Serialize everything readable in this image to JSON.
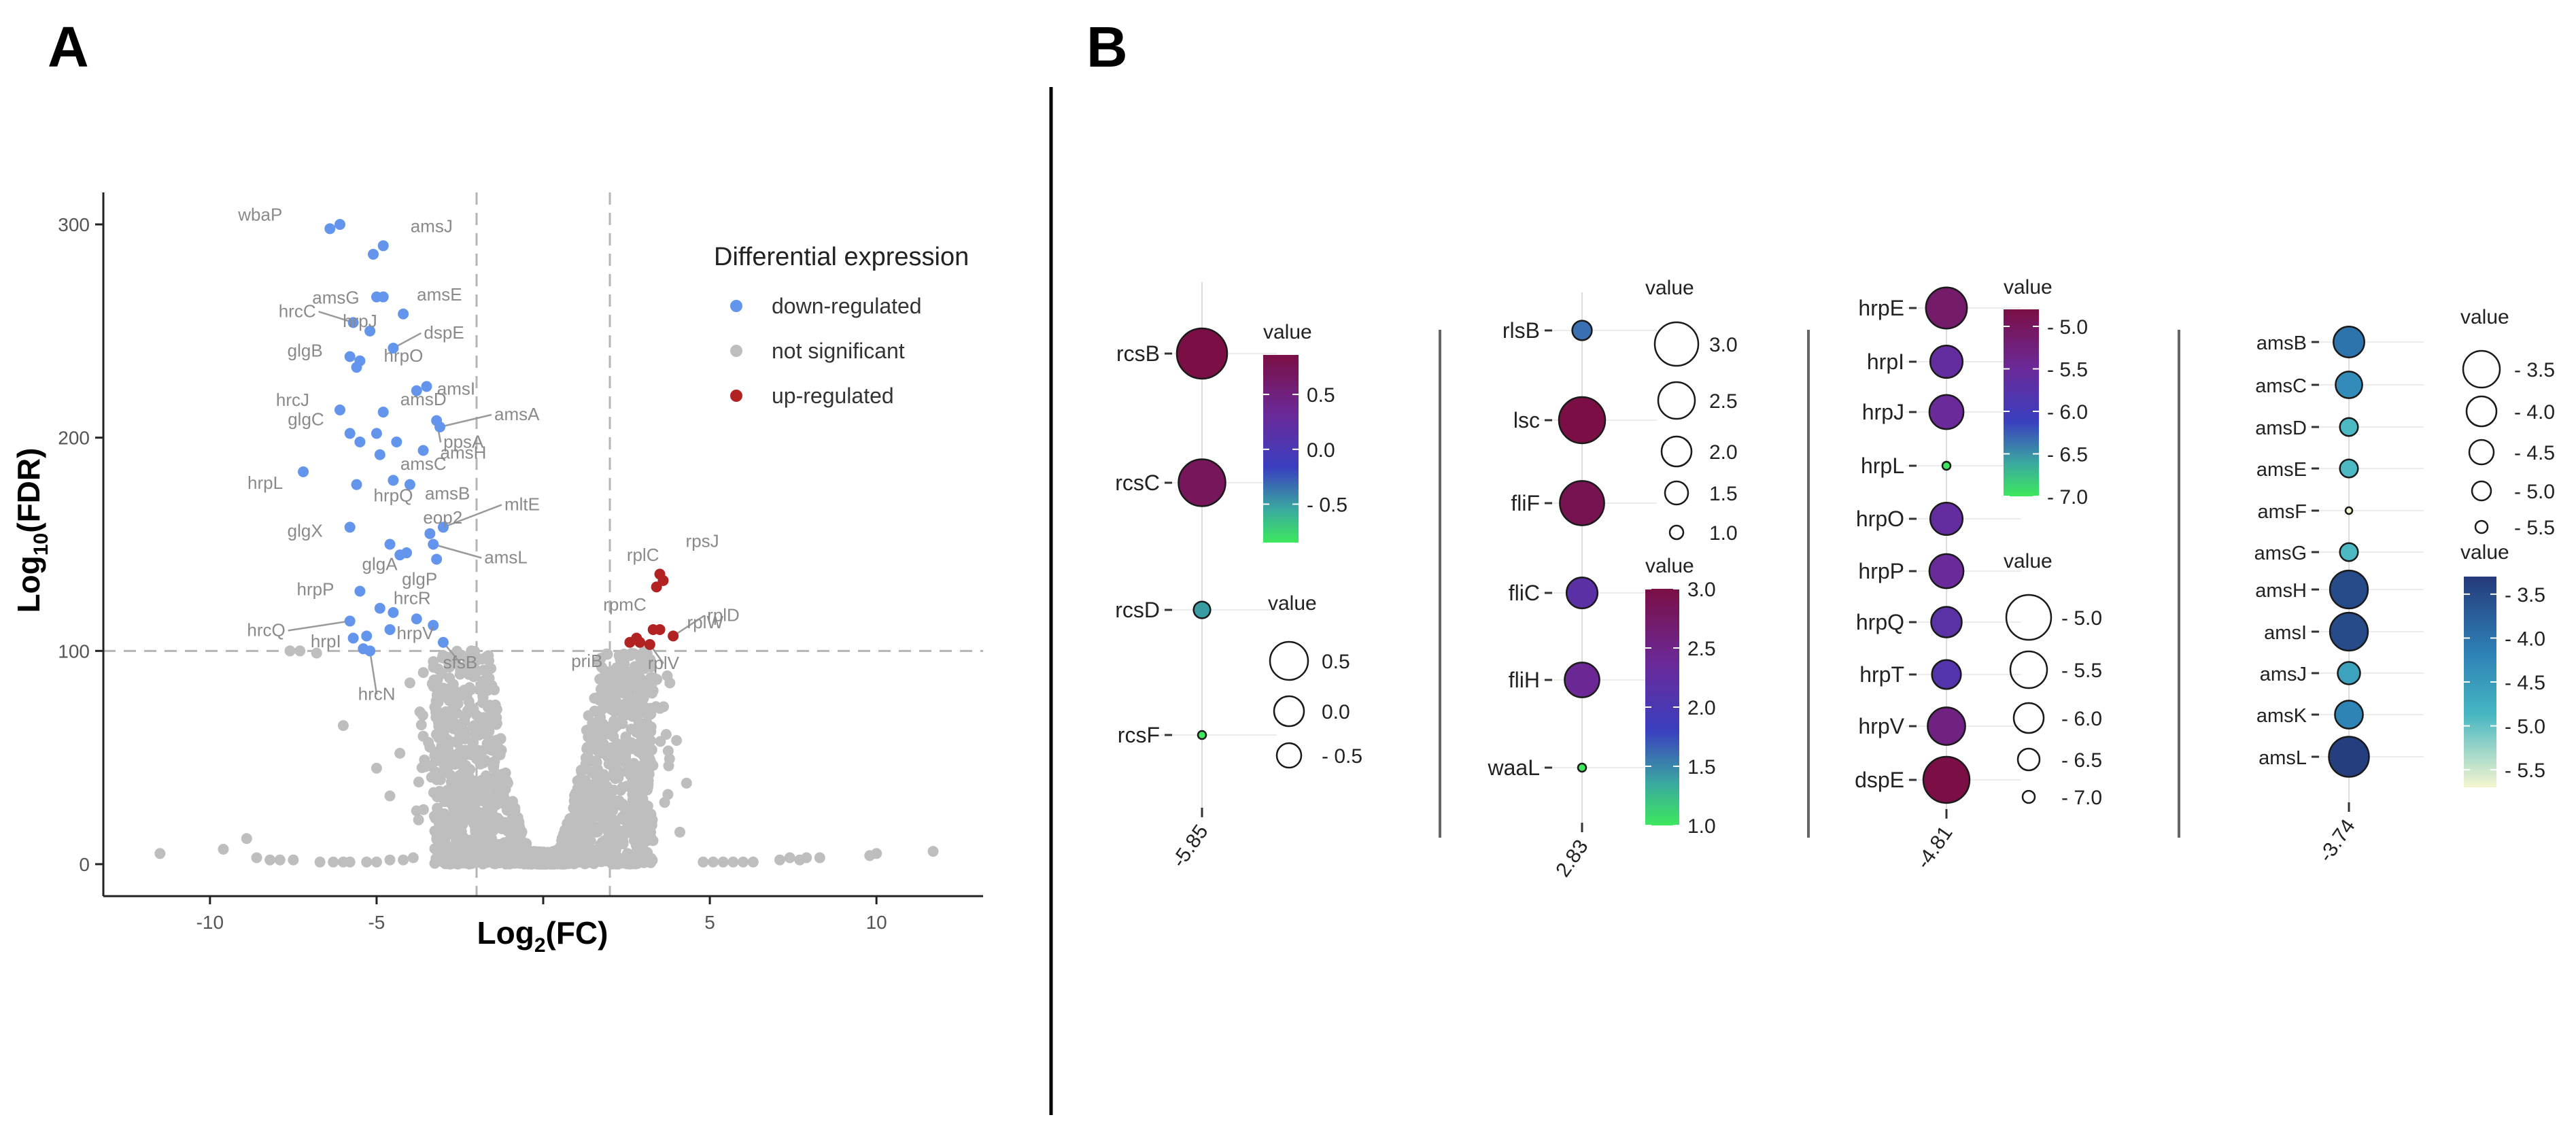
{
  "panels": {
    "a": "A",
    "b": "B"
  },
  "chart_data": [
    {
      "type": "scatter",
      "name": "volcano",
      "xlabel": "Log2(FC)",
      "ylabel": "Log10(FDR)",
      "xlim": [
        -13.2,
        13.2
      ],
      "ylim": [
        -15,
        315
      ],
      "xticks": [
        -10,
        -5,
        0,
        5,
        10
      ],
      "xtick_labels": [
        "-10",
        "-5",
        "",
        "5",
        "10"
      ],
      "yticks": [
        0,
        100,
        200,
        300
      ],
      "thresholds": {
        "fc": [
          -2,
          2
        ],
        "fdr": 100
      },
      "legend": {
        "title": "Differential expression",
        "position": "right",
        "entries": [
          {
            "label": "down-regulated",
            "color": "#6495ed"
          },
          {
            "label": "not significant",
            "color": "#bebebe"
          },
          {
            "label": "up-regulated",
            "color": "#b22222"
          }
        ]
      },
      "down_points": [
        {
          "label": "wbaP",
          "x": -6.4,
          "y": 298
        },
        {
          "label": "",
          "x": -6.1,
          "y": 300
        },
        {
          "label": "amsJ",
          "x": -4.8,
          "y": 290
        },
        {
          "label": "",
          "x": -5.1,
          "y": 286
        },
        {
          "label": "amsG",
          "x": -5.0,
          "y": 266
        },
        {
          "label": "",
          "x": -4.8,
          "y": 266
        },
        {
          "label": "amsE",
          "x": -4.2,
          "y": 258
        },
        {
          "label": "hrcC",
          "x": -5.7,
          "y": 254
        },
        {
          "label": "hrpJ",
          "x": -5.2,
          "y": 250
        },
        {
          "label": "dspE",
          "x": -4.5,
          "y": 242
        },
        {
          "label": "glgB",
          "x": -5.8,
          "y": 238
        },
        {
          "label": "",
          "x": -5.5,
          "y": 236
        },
        {
          "label": "hrpO",
          "x": -5.6,
          "y": 233
        },
        {
          "label": "amsI",
          "x": -3.8,
          "y": 222
        },
        {
          "label": "",
          "x": -3.5,
          "y": 224
        },
        {
          "label": "hrcJ",
          "x": -6.1,
          "y": 213
        },
        {
          "label": "amsD",
          "x": -4.8,
          "y": 212
        },
        {
          "label": "ppsA",
          "x": -3.2,
          "y": 208
        },
        {
          "label": "amsA",
          "x": -3.1,
          "y": 205
        },
        {
          "label": "glgC",
          "x": -5.8,
          "y": 202
        },
        {
          "label": "",
          "x": -5.5,
          "y": 198
        },
        {
          "label": "",
          "x": -5.0,
          "y": 202
        },
        {
          "label": "amsH",
          "x": -3.6,
          "y": 194
        },
        {
          "label": "",
          "x": -4.4,
          "y": 198
        },
        {
          "label": "amsC",
          "x": -4.9,
          "y": 192
        },
        {
          "label": "hrpL",
          "x": -7.2,
          "y": 184
        },
        {
          "label": "hrpQ",
          "x": -5.6,
          "y": 178
        },
        {
          "label": "",
          "x": -4.5,
          "y": 180
        },
        {
          "label": "amsB",
          "x": -4.0,
          "y": 178
        },
        {
          "label": "mltE",
          "x": -3.0,
          "y": 158
        },
        {
          "label": "glgX",
          "x": -5.8,
          "y": 158
        },
        {
          "label": "eop2",
          "x": -3.4,
          "y": 155
        },
        {
          "label": "amsL",
          "x": -3.3,
          "y": 150
        },
        {
          "label": "glgA",
          "x": -4.6,
          "y": 150
        },
        {
          "label": "",
          "x": -4.3,
          "y": 145
        },
        {
          "label": "",
          "x": -4.1,
          "y": 146
        },
        {
          "label": "glgP",
          "x": -3.2,
          "y": 143
        },
        {
          "label": "hrpP",
          "x": -5.5,
          "y": 128
        },
        {
          "label": "hrcR",
          "x": -4.9,
          "y": 120
        },
        {
          "label": "",
          "x": -4.5,
          "y": 118
        },
        {
          "label": "hrcQ",
          "x": -5.8,
          "y": 114
        },
        {
          "label": "hrpV",
          "x": -4.6,
          "y": 110
        },
        {
          "label": "",
          "x": -3.8,
          "y": 115
        },
        {
          "label": "",
          "x": -3.3,
          "y": 112
        },
        {
          "label": "",
          "x": -5.7,
          "y": 106
        },
        {
          "label": "",
          "x": -5.3,
          "y": 107
        },
        {
          "label": "sfsB",
          "x": -3.0,
          "y": 104
        },
        {
          "label": "hrpI",
          "x": -5.4,
          "y": 101
        },
        {
          "label": "hrcN",
          "x": -5.2,
          "y": 100
        }
      ],
      "up_points": [
        {
          "label": "rplC",
          "x": 3.4,
          "y": 130
        },
        {
          "label": "rpsJ",
          "x": 3.5,
          "y": 136
        },
        {
          "label": "",
          "x": 3.6,
          "y": 133
        },
        {
          "label": "rpmC",
          "x": 3.3,
          "y": 110
        },
        {
          "label": "rplW",
          "x": 3.5,
          "y": 110
        },
        {
          "label": "rplD",
          "x": 3.9,
          "y": 107
        },
        {
          "label": "priB",
          "x": 2.6,
          "y": 104
        },
        {
          "label": "",
          "x": 2.9,
          "y": 104
        },
        {
          "label": "rplV",
          "x": 3.2,
          "y": 103
        },
        {
          "label": "",
          "x": 2.8,
          "y": 106
        }
      ],
      "ns_summary": "dense grey cloud of non-significant genes forming a V from (0,0) up to FDR ~ 100 near |FC| = 2-3, plus scattered low points out to FC -11.5 and +11.5"
    },
    {
      "type": "dot",
      "name": "rcs-group",
      "x_label": "-5.85",
      "genes": [
        "rcsB",
        "rcsC",
        "rcsD",
        "rcsF"
      ],
      "values": [
        0.86,
        0.72,
        -0.5,
        -0.85
      ],
      "color_legend": {
        "title": "value",
        "ticks": [
          "0.5",
          "0.0",
          "- 0.5"
        ],
        "min": -0.85,
        "max": 0.86
      },
      "size_legend": {
        "title": "value",
        "ticks": [
          "0.5",
          "0.0",
          "- 0.5"
        ]
      }
    },
    {
      "type": "dot",
      "name": "flagella-group",
      "x_label": "2.83",
      "genes": [
        "rlsB",
        "lsc",
        "fliF",
        "fliC",
        "fliH",
        "waaL"
      ],
      "values": [
        1.6,
        3.0,
        2.9,
        2.2,
        2.4,
        1.0
      ],
      "color_legend": {
        "title": "value",
        "ticks": [
          "3.0",
          "2.5",
          "2.0",
          "1.5",
          "1.0"
        ],
        "min": 1.0,
        "max": 3.0
      },
      "size_legend": {
        "title": "value",
        "ticks": [
          "3.0",
          "2.5",
          "2.0",
          "1.5",
          "1.0"
        ]
      }
    },
    {
      "type": "dot",
      "name": "hrp-group",
      "x_label": "-4.81",
      "genes": [
        "hrpE",
        "hrpI",
        "hrpJ",
        "hrpL",
        "hrpO",
        "hrpP",
        "hrpQ",
        "hrpT",
        "hrpV",
        "dspE"
      ],
      "values": [
        -5.1,
        -5.6,
        -5.5,
        -7.0,
        -5.6,
        -5.5,
        -5.7,
        -5.8,
        -5.3,
        -4.8
      ],
      "color_legend": {
        "title": "value",
        "ticks": [
          "- 5.0",
          "- 5.5",
          "- 6.0",
          "- 6.5",
          "- 7.0"
        ],
        "min": -7.0,
        "max": -4.8
      },
      "size_legend": {
        "title": "value",
        "ticks": [
          "- 5.0",
          "- 5.5",
          "- 6.0",
          "- 6.5",
          "- 7.0"
        ]
      }
    },
    {
      "type": "dot",
      "name": "ams-group",
      "x_label": "-3.74",
      "genes": [
        "amsB",
        "amsC",
        "amsD",
        "amsE",
        "amsF",
        "amsG",
        "amsH",
        "amsI",
        "amsJ",
        "amsK",
        "amsL"
      ],
      "values": [
        -4.0,
        -4.3,
        -4.9,
        -4.9,
        -5.7,
        -4.9,
        -3.5,
        -3.5,
        -4.6,
        -4.2,
        -3.35
      ],
      "color_legend": {
        "title": "value",
        "ticks": [
          "- 3.5",
          "- 4.0",
          "- 4.5",
          "- 5.0",
          "- 5.5"
        ],
        "min": -5.7,
        "max": -3.3
      },
      "size_legend": {
        "title": "value",
        "ticks": [
          "- 3.5",
          "- 4.0",
          "- 4.5",
          "- 5.0",
          "- 5.5"
        ]
      }
    }
  ]
}
